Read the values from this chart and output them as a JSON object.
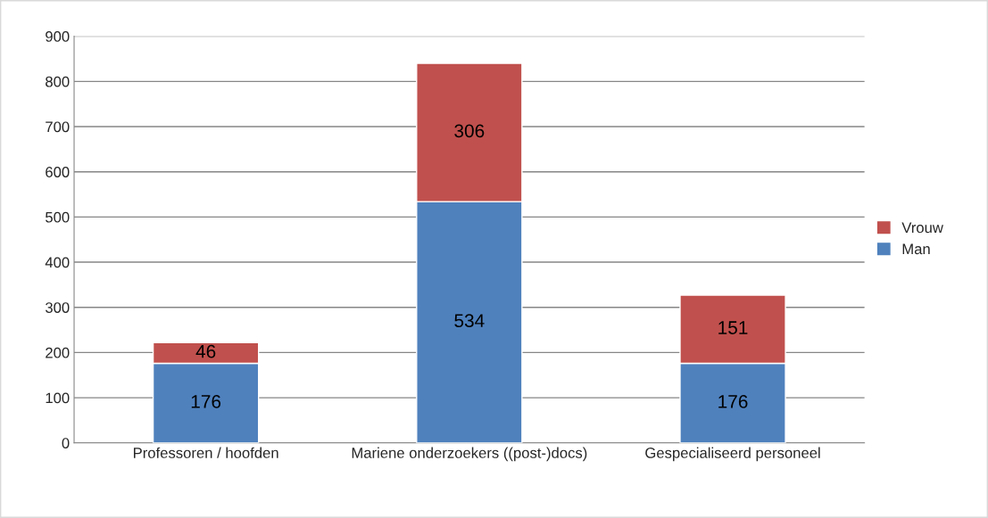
{
  "chart_data": {
    "type": "bar",
    "stacked": true,
    "categories": [
      "Professoren / hoofden",
      "Mariene onderzoekers ((post-)docs)",
      "Gespecialiseerd personeel"
    ],
    "series": [
      {
        "name": "Man",
        "color": "#4f81bd",
        "values": [
          176,
          534,
          176
        ]
      },
      {
        "name": "Vrouw",
        "color": "#c0504d",
        "values": [
          46,
          306,
          151
        ]
      }
    ],
    "ylim": [
      0,
      900
    ],
    "yticks": [
      0,
      100,
      200,
      300,
      400,
      500,
      600,
      700,
      800,
      900
    ],
    "grid": "y",
    "legend": "right",
    "data_labels": true
  }
}
